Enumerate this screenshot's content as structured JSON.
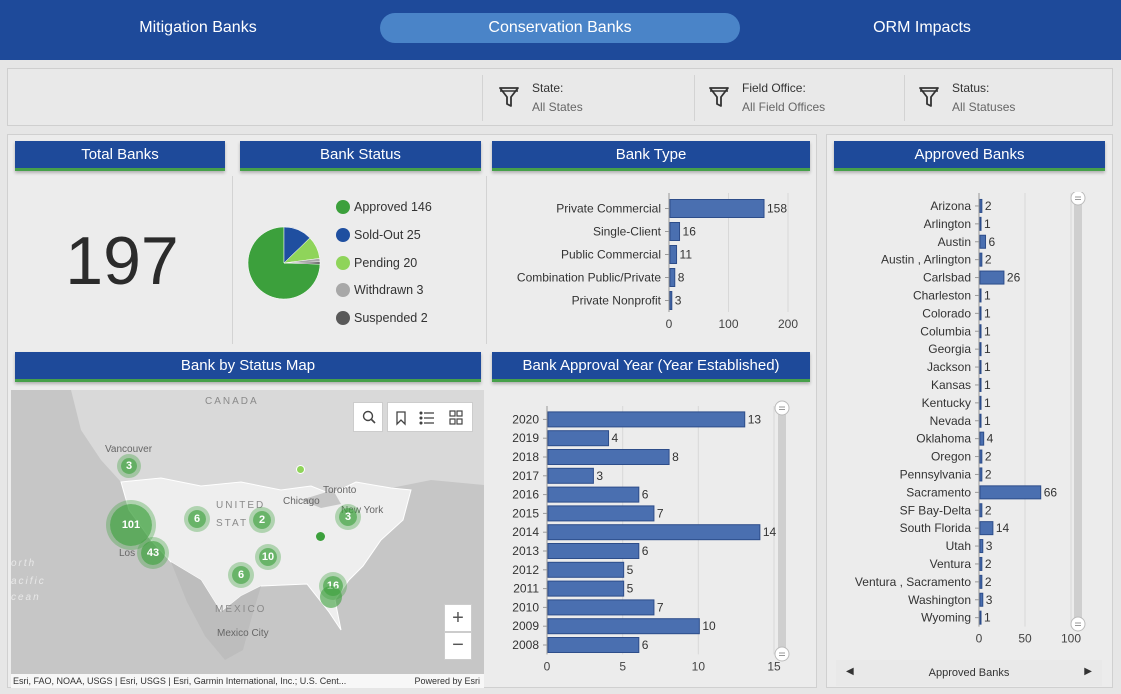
{
  "tabs": [
    {
      "label": "Mitigation Banks"
    },
    {
      "label": "Conservation Banks"
    },
    {
      "label": "ORM Impacts"
    }
  ],
  "filters": [
    {
      "label": "State:",
      "value": "All States"
    },
    {
      "label": "Field Office:",
      "value": "All Field Offices"
    },
    {
      "label": "Status:",
      "value": "All Statuses"
    }
  ],
  "total_banks": {
    "title": "Total Banks",
    "value": "197"
  },
  "bank_status": {
    "title": "Bank Status",
    "legend": [
      {
        "label": "Approved 146",
        "color": "#3ca03c"
      },
      {
        "label": "Sold-Out 25",
        "color": "#1f4fa0"
      },
      {
        "label": "Pending 20",
        "color": "#8fd45a"
      },
      {
        "label": "Withdrawn 3",
        "color": "#a8a8a8"
      },
      {
        "label": "Suspended 2",
        "color": "#595959"
      }
    ]
  },
  "bank_type": {
    "title": "Bank Type"
  },
  "approval_year": {
    "title": "Bank Approval Year (Year Established)"
  },
  "approved_banks": {
    "title": "Approved Banks",
    "nav_label": "Approved Banks"
  },
  "map": {
    "title": "Bank by Status Map",
    "attribution": "Esri, FAO, NOAA, USGS | Esri, USGS | Esri, Garmin International, Inc.; U.S. Cent...",
    "powered_by": "Powered by Esri",
    "labels": {
      "canada": "CANADA",
      "united_states": "UNITED STATES",
      "states_short": "STAT",
      "united": "UNITED",
      "chicago": "Chicago",
      "toronto": "Toronto",
      "new_york": "New York",
      "vancouver": "Vancouver",
      "los_angeles": "Los",
      "mexico": "MEXICO",
      "mexico_city": "Mexico City",
      "north": "orth",
      "pacific": "acific",
      "ocean": "cean"
    },
    "clusters": [
      {
        "label": "3",
        "color": "#3ca03c"
      },
      {
        "label": "101",
        "color": "#3ca03c"
      },
      {
        "label": "43",
        "color": "#3ca03c"
      },
      {
        "label": "6",
        "color": "#3ca03c"
      },
      {
        "label": "2",
        "color": "#3ca03c"
      },
      {
        "label": "10",
        "color": "#3ca03c"
      },
      {
        "label": "6",
        "color": "#3ca03c"
      },
      {
        "label": "3",
        "color": "#3ca03c"
      },
      {
        "label": "16",
        "color": "#3ca03c"
      }
    ]
  },
  "chart_data": [
    {
      "type": "pie",
      "title": "Bank Status",
      "categories": [
        "Approved",
        "Sold-Out",
        "Pending",
        "Withdrawn",
        "Suspended"
      ],
      "values": [
        146,
        25,
        20,
        3,
        2
      ],
      "colors": [
        "#3ca03c",
        "#1f4fa0",
        "#8fd45a",
        "#a8a8a8",
        "#595959"
      ]
    },
    {
      "type": "bar",
      "orientation": "horizontal",
      "title": "Bank Type",
      "categories": [
        "Private Commercial",
        "Single-Client",
        "Public Commercial",
        "Combination Public/Private",
        "Private Nonprofit"
      ],
      "values": [
        158,
        16,
        11,
        8,
        3
      ],
      "xlim": [
        0,
        200
      ],
      "ticks": [
        0,
        100,
        200
      ]
    },
    {
      "type": "bar",
      "orientation": "horizontal",
      "title": "Bank Approval Year (Year Established)",
      "categories": [
        "2020",
        "2019",
        "2018",
        "2017",
        "2016",
        "2015",
        "2014",
        "2013",
        "2012",
        "2011",
        "2010",
        "2009",
        "2008"
      ],
      "values": [
        13,
        4,
        8,
        3,
        6,
        7,
        14,
        6,
        5,
        5,
        7,
        10,
        6
      ],
      "xlim": [
        0,
        15
      ],
      "ticks": [
        0,
        5,
        10,
        15
      ]
    },
    {
      "type": "bar",
      "orientation": "horizontal",
      "title": "Approved Banks",
      "categories": [
        "Arizona",
        "Arlington",
        "Austin",
        "Austin , Arlington",
        "Carlsbad",
        "Charleston",
        "Colorado",
        "Columbia",
        "Georgia",
        "Jackson",
        "Kansas",
        "Kentucky",
        "Nevada",
        "Oklahoma",
        "Oregon",
        "Pennsylvania",
        "Sacramento",
        "SF Bay-Delta",
        "South Florida",
        "Utah",
        "Ventura",
        "Ventura , Sacramento",
        "Washington",
        "Wyoming"
      ],
      "values": [
        2,
        1,
        6,
        2,
        26,
        1,
        1,
        1,
        1,
        1,
        1,
        1,
        1,
        4,
        2,
        2,
        66,
        2,
        14,
        3,
        2,
        2,
        3,
        1
      ],
      "xlim": [
        0,
        100
      ],
      "ticks": [
        0,
        50,
        100
      ]
    }
  ]
}
